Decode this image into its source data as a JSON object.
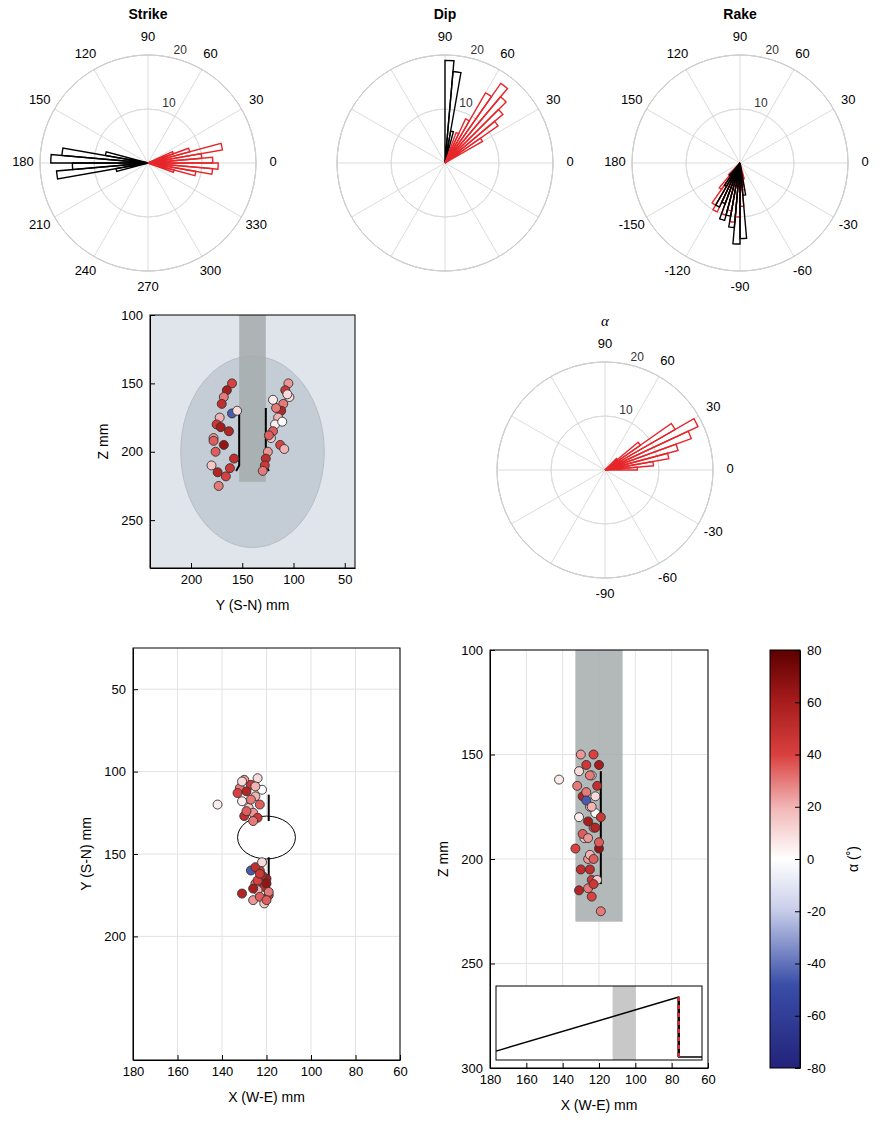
{
  "chart_data": [
    {
      "type": "polar_histogram",
      "title": "Strike",
      "xlim": [
        0,
        360
      ],
      "xticks": [
        0,
        30,
        60,
        90,
        120,
        150,
        180,
        210,
        240,
        270,
        300,
        330
      ],
      "ylim": [
        0,
        20
      ],
      "yticks": [
        10,
        20
      ],
      "grid": true,
      "series": [
        {
          "color": "#000000",
          "bins": [
            165,
            170,
            175,
            180,
            185,
            190,
            195
          ],
          "values": [
            8,
            16,
            18,
            14,
            17,
            6
          ]
        },
        {
          "color": "#e6262a",
          "bins": [
            340,
            345,
            350,
            355,
            360
          ],
          "values": [
            5,
            9,
            12,
            13
          ]
        },
        {
          "color": "#e6262a",
          "bins": [
            0,
            5,
            10,
            15,
            20,
            25
          ],
          "values": [
            12,
            10,
            14,
            8,
            5
          ]
        }
      ]
    },
    {
      "type": "polar_histogram",
      "title": "Dip",
      "xlim": [
        0,
        360
      ],
      "xticks": [
        0,
        30,
        60,
        90
      ],
      "ylim": [
        0,
        20
      ],
      "yticks": [
        10,
        20
      ],
      "grid": true,
      "series": [
        {
          "color": "#000000",
          "bins": [
            75,
            80,
            85,
            90
          ],
          "values": [
            6,
            17,
            19
          ]
        },
        {
          "color": "#e6262a",
          "bins": [
            30,
            35,
            40,
            45,
            50,
            55,
            60,
            65,
            70
          ],
          "values": [
            8,
            12,
            14,
            16,
            18,
            15,
            9,
            6
          ]
        }
      ]
    },
    {
      "type": "polar_histogram",
      "title": "Rake",
      "xlim": [
        -180,
        180
      ],
      "xticks": [
        -150,
        -120,
        -90,
        -60,
        -30,
        0,
        30,
        60,
        90,
        120,
        150,
        180
      ],
      "ylim": [
        0,
        20
      ],
      "yticks": [
        10,
        20
      ],
      "grid": true,
      "series": [
        {
          "color": "#e6262a",
          "bins": [
            -135,
            -130,
            -125,
            -120,
            -115,
            -110,
            -105,
            -100,
            -95,
            -90,
            -85,
            -80,
            -75
          ],
          "values": [
            3,
            6,
            9,
            10,
            8,
            10,
            9,
            11,
            10,
            8,
            5,
            3
          ]
        },
        {
          "color": "#000000",
          "bins": [
            -130,
            -125,
            -120,
            -115,
            -110,
            -105,
            -100,
            -95,
            -90,
            -85,
            -80
          ],
          "values": [
            3,
            5,
            9,
            8,
            11,
            10,
            12,
            15,
            14,
            6
          ]
        }
      ]
    },
    {
      "type": "scatter",
      "xlabel": "Y (S-N) mm",
      "ylabel": "Z mm",
      "xlim": [
        240,
        40
      ],
      "xticks": [
        200,
        150,
        100,
        50
      ],
      "ylim": [
        285,
        100
      ],
      "yticks": [
        250,
        200,
        150,
        100
      ],
      "grid": false,
      "disc": {
        "x": 140,
        "y": 200,
        "radius": 70
      },
      "borehole": {
        "x": [
          153,
          127
        ],
        "y": [
          100,
          222
        ]
      },
      "lines": [
        {
          "x": [
            153,
            153,
            156
          ],
          "y": [
            168,
            210,
            214
          ]
        },
        {
          "x": [
            127,
            127,
            124
          ],
          "y": [
            168,
            210,
            214
          ]
        }
      ],
      "x": [
        105,
        108,
        104,
        110,
        112,
        115,
        118,
        120,
        122,
        113,
        125,
        127,
        111,
        117,
        128,
        106,
        124,
        109,
        120,
        130,
        160,
        165,
        168,
        160,
        170,
        172,
        175,
        163,
        178,
        168,
        176,
        158,
        180,
        166,
        173,
        155,
        171,
        178,
        162,
        174
      ],
      "values": [
        150,
        155,
        160,
        165,
        170,
        175,
        180,
        185,
        190,
        195,
        200,
        205,
        178,
        168,
        210,
        158,
        188,
        198,
        162,
        214,
        150,
        155,
        160,
        172,
        165,
        175,
        180,
        185,
        190,
        195,
        200,
        205,
        210,
        218,
        225,
        170,
        182,
        192,
        212,
        215
      ],
      "alpha": [
        25,
        45,
        10,
        30,
        55,
        20,
        5,
        35,
        15,
        40,
        25,
        50,
        0,
        30,
        45,
        10,
        35,
        20,
        5,
        30,
        40,
        60,
        30,
        -45,
        50,
        20,
        45,
        55,
        25,
        65,
        35,
        50,
        15,
        40,
        30,
        10,
        60,
        35,
        45,
        55
      ]
    },
    {
      "type": "polar_histogram",
      "title": "α",
      "xlim": [
        -180,
        180
      ],
      "xticks": [
        -90,
        -60,
        -30,
        0,
        30,
        60,
        90
      ],
      "ylim": [
        0,
        20
      ],
      "yticks": [
        10,
        20
      ],
      "grid": true,
      "series": [
        {
          "color": "#e6262a",
          "bins": [
            0,
            5,
            10,
            15,
            20,
            25,
            30,
            35,
            40,
            45
          ],
          "values": [
            6,
            9,
            12,
            14,
            17,
            19,
            15,
            8,
            3
          ]
        }
      ]
    },
    {
      "type": "scatter",
      "xlabel": "X (W-E) mm",
      "ylabel": "Y (S-N) mm",
      "xlim": [
        180,
        60
      ],
      "xticks": [
        180,
        160,
        140,
        120,
        100,
        80,
        60
      ],
      "ylim": [
        275,
        25
      ],
      "yticks": [
        200,
        150,
        100,
        50
      ],
      "grid": true,
      "circle": {
        "x": 120,
        "y": 140,
        "radius": 13
      },
      "lines": [
        {
          "x": [
            119,
            119
          ],
          "y": [
            114,
            130
          ]
        },
        {
          "x": [
            119,
            119
          ],
          "y": [
            152,
            172
          ]
        }
      ],
      "x": [
        130,
        127,
        124,
        132,
        129,
        125,
        131,
        123,
        128,
        133,
        126,
        130,
        122,
        127,
        124,
        131,
        129,
        125,
        142,
        126,
        123,
        120,
        125,
        127,
        121,
        124,
        119,
        122,
        126,
        120,
        123,
        125,
        121,
        124,
        119,
        122,
        126,
        120,
        123,
        131
      ],
      "values": [
        105,
        108,
        104,
        110,
        112,
        115,
        118,
        120,
        122,
        113,
        125,
        127,
        111,
        117,
        128,
        106,
        124,
        109,
        120,
        130,
        160,
        165,
        168,
        160,
        170,
        172,
        175,
        163,
        178,
        168,
        176,
        158,
        180,
        166,
        173,
        155,
        171,
        178,
        162,
        174
      ],
      "alpha": [
        25,
        45,
        10,
        30,
        55,
        20,
        5,
        35,
        15,
        40,
        25,
        50,
        0,
        30,
        45,
        10,
        35,
        20,
        5,
        30,
        40,
        60,
        30,
        -45,
        50,
        20,
        45,
        55,
        25,
        65,
        35,
        50,
        15,
        40,
        30,
        10,
        60,
        35,
        45,
        55
      ]
    },
    {
      "type": "scatter",
      "xlabel": "X (W-E) mm",
      "ylabel": "Z mm",
      "xlim": [
        180,
        60
      ],
      "xticks": [
        180,
        160,
        140,
        120,
        100,
        80,
        60
      ],
      "ylim": [
        300,
        100
      ],
      "yticks": [
        300,
        250,
        200,
        150,
        100
      ],
      "grid": true,
      "borehole": {
        "x": [
          133,
          107
        ],
        "y": [
          100,
          230
        ]
      },
      "lines": [
        {
          "x": [
            119,
            119
          ],
          "y": [
            158,
            212
          ]
        }
      ],
      "x": [
        130,
        127,
        124,
        132,
        129,
        125,
        131,
        123,
        128,
        133,
        126,
        130,
        122,
        127,
        124,
        131,
        129,
        125,
        142,
        126,
        123,
        120,
        125,
        127,
        121,
        124,
        119,
        122,
        126,
        120,
        123,
        125,
        121,
        124,
        119,
        122,
        126,
        120,
        123,
        131
      ],
      "values": [
        150,
        155,
        160,
        165,
        170,
        175,
        180,
        185,
        190,
        195,
        200,
        205,
        178,
        168,
        210,
        158,
        188,
        198,
        162,
        214,
        150,
        155,
        160,
        172,
        165,
        175,
        180,
        185,
        190,
        195,
        200,
        205,
        210,
        218,
        225,
        170,
        182,
        192,
        212,
        215
      ],
      "alpha": [
        25,
        45,
        10,
        30,
        55,
        20,
        5,
        35,
        15,
        40,
        25,
        50,
        0,
        30,
        45,
        10,
        35,
        20,
        5,
        30,
        40,
        60,
        30,
        -45,
        50,
        20,
        45,
        55,
        25,
        65,
        35,
        50,
        15,
        40,
        30,
        10,
        60,
        35,
        45,
        55
      ],
      "inset": {
        "xlim": [
          172,
          66
        ],
        "ylim": [
          0,
          1
        ],
        "tick_labels": false,
        "band": [
          112,
          100
        ],
        "x": [
          172,
          78,
          78,
          66
        ],
        "values": [
          0.12,
          0.85,
          0.04,
          0.04
        ],
        "marker_line": {
          "x": 78,
          "values": [
            0.04,
            0.85
          ]
        }
      },
      "colorbar": {
        "label": "α (˚)",
        "lim": [
          -80,
          80
        ],
        "ticks": [
          -80,
          -60,
          -40,
          -20,
          0,
          20,
          40,
          60,
          80
        ]
      }
    }
  ]
}
